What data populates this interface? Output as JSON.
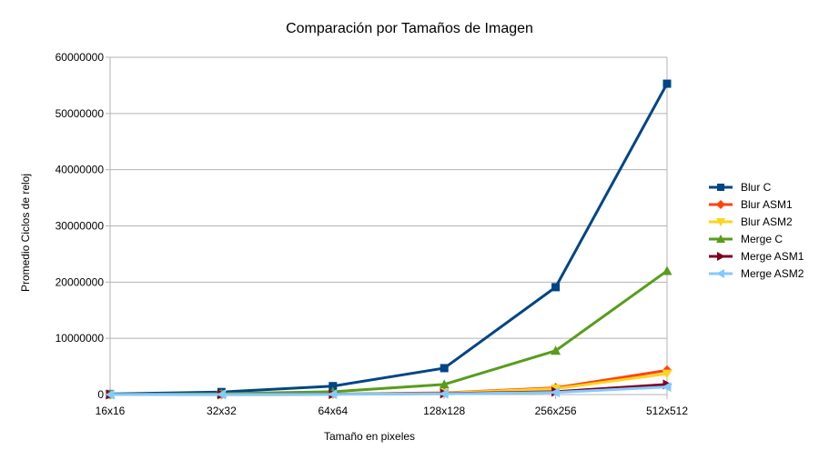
{
  "chart_data": {
    "type": "line",
    "title": "Comparación por Tamaños de Imagen",
    "xlabel": "Tamaño en pixeles",
    "ylabel": "Promedio Ciclos de reloj",
    "categories": [
      "16x16",
      "32x32",
      "64x64",
      "128x128",
      "256x256",
      "512x512"
    ],
    "ylim": [
      0,
      60000000
    ],
    "yticks": [
      0,
      10000000,
      20000000,
      30000000,
      40000000,
      50000000,
      60000000
    ],
    "ytick_labels": [
      "0",
      "10000000",
      "20000000",
      "30000000",
      "40000000",
      "50000000",
      "60000000"
    ],
    "grid": "horizontal",
    "legend_position": "right",
    "series": [
      {
        "name": "Blur C",
        "color": "#004586",
        "marker": "square",
        "values": [
          100000,
          450000,
          1500000,
          4700000,
          19100000,
          55300000
        ]
      },
      {
        "name": "Blur ASM1",
        "color": "#ff420e",
        "marker": "diamond",
        "values": [
          10000,
          30000,
          80000,
          300000,
          1200000,
          4300000
        ]
      },
      {
        "name": "Blur ASM2",
        "color": "#ffd320",
        "marker": "triangle-down",
        "values": [
          8000,
          25000,
          70000,
          250000,
          1050000,
          3700000
        ]
      },
      {
        "name": "Merge C",
        "color": "#579d1c",
        "marker": "triangle-up",
        "values": [
          40000,
          150000,
          500000,
          1800000,
          7800000,
          22000000
        ]
      },
      {
        "name": "Merge ASM1",
        "color": "#7e0021",
        "marker": "triangle-right",
        "values": [
          5000,
          20000,
          60000,
          180000,
          500000,
          1800000
        ]
      },
      {
        "name": "Merge ASM2",
        "color": "#83caff",
        "marker": "triangle-left",
        "values": [
          4000,
          15000,
          50000,
          130000,
          380000,
          1350000
        ]
      }
    ]
  }
}
